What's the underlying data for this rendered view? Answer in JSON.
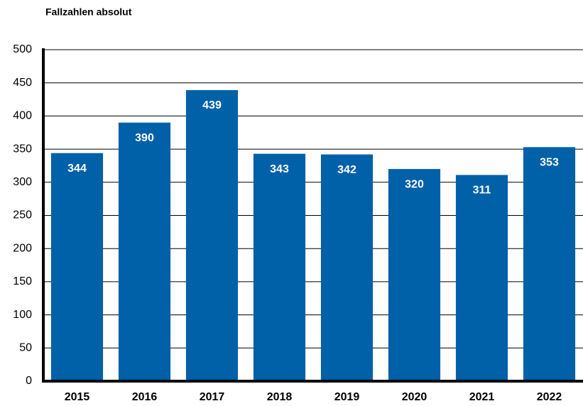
{
  "chart_data": {
    "type": "bar",
    "title": "Fallzahlen absolut",
    "categories": [
      "2015",
      "2016",
      "2017",
      "2018",
      "2019",
      "2020",
      "2021",
      "2022"
    ],
    "values": [
      344,
      390,
      439,
      343,
      342,
      320,
      311,
      353
    ],
    "color": "#0060a8",
    "ylim": [
      0,
      500
    ],
    "yticks": [
      0,
      50,
      100,
      150,
      200,
      250,
      300,
      350,
      400,
      450,
      500
    ],
    "grid": true
  }
}
